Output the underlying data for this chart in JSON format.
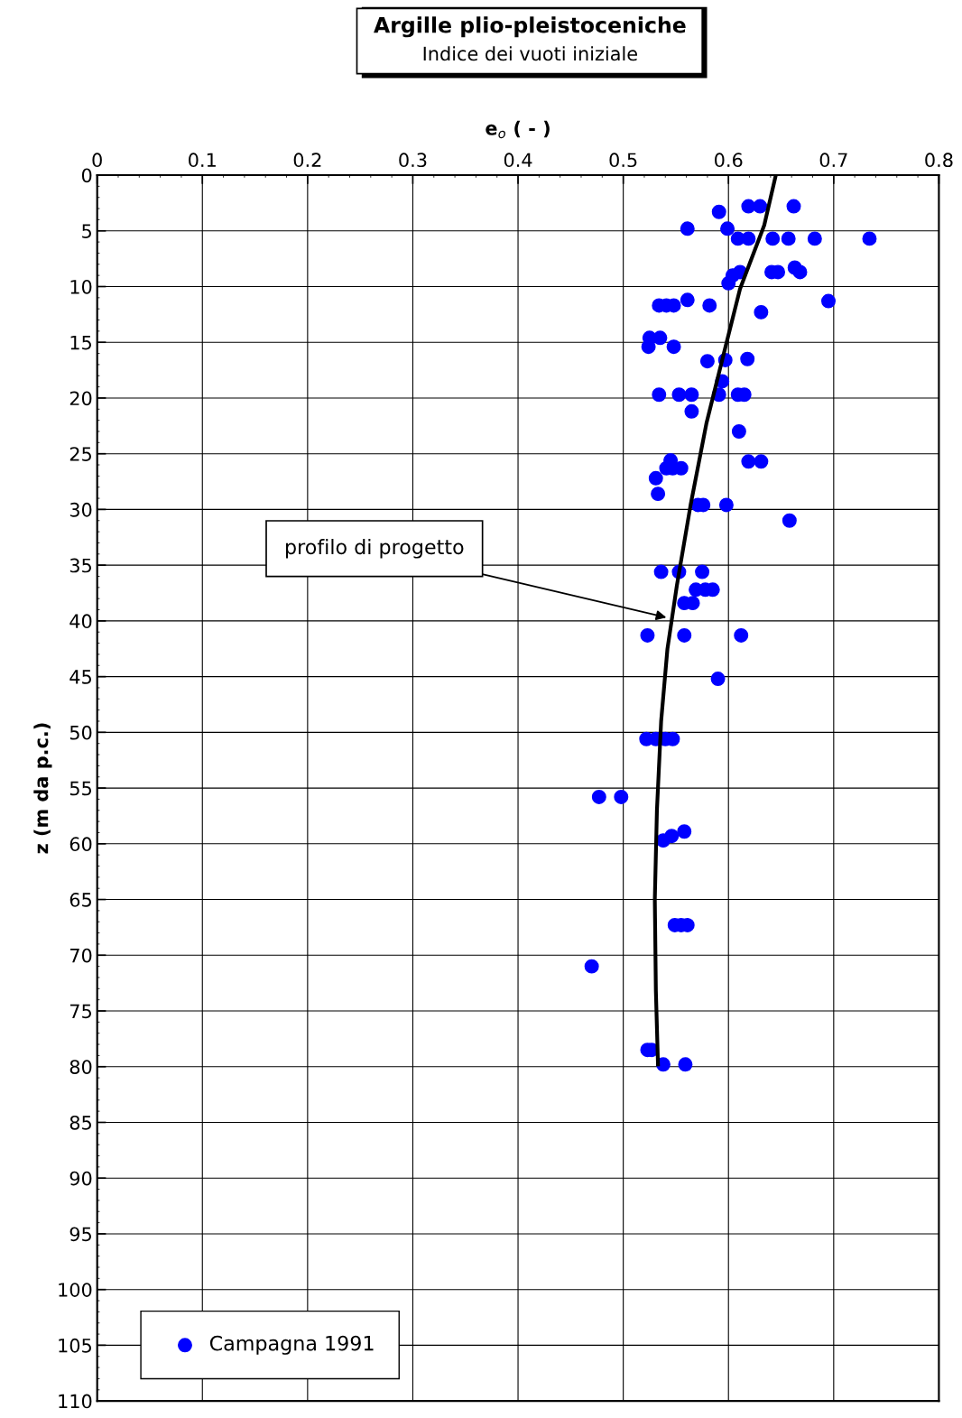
{
  "chart_data": {
    "type": "scatter",
    "title": "Argille plio-pleistoceniche",
    "subtitle": "Indice dei vuoti iniziale",
    "xlabel": "e$_{o}$ ( - )",
    "ylabel": "z (m da p.c.)",
    "xlim": [
      0,
      0.8
    ],
    "xticks": [
      0,
      0.1,
      0.2,
      0.3,
      0.4,
      0.5,
      0.6,
      0.7,
      0.8
    ],
    "ylim": [
      110,
      0
    ],
    "yticks": [
      0,
      5,
      10,
      15,
      20,
      25,
      30,
      35,
      40,
      45,
      50,
      55,
      60,
      65,
      70,
      75,
      80,
      85,
      90,
      95,
      100,
      105,
      110
    ],
    "grid": true,
    "legend": "bottom left",
    "annotations": [
      {
        "text": "profilo di progetto",
        "x": 0.541,
        "y": 39.7
      }
    ],
    "series": [
      {
        "name": "Campagna 1991",
        "color": "#0000ff",
        "marker": "circle",
        "x": [
          0.619,
          0.63,
          0.662,
          0.591,
          0.561,
          0.599,
          0.609,
          0.619,
          0.642,
          0.657,
          0.682,
          0.734,
          0.604,
          0.611,
          0.6,
          0.641,
          0.647,
          0.663,
          0.668,
          0.695,
          0.534,
          0.541,
          0.548,
          0.561,
          0.582,
          0.631,
          0.525,
          0.535,
          0.524,
          0.548,
          0.58,
          0.597,
          0.618,
          0.594,
          0.534,
          0.553,
          0.565,
          0.591,
          0.609,
          0.615,
          0.565,
          0.61,
          0.545,
          0.619,
          0.631,
          0.541,
          0.547,
          0.555,
          0.531,
          0.533,
          0.571,
          0.576,
          0.598,
          0.658,
          0.536,
          0.553,
          0.575,
          0.569,
          0.578,
          0.585,
          0.558,
          0.566,
          0.523,
          0.558,
          0.612,
          0.59,
          0.522,
          0.531,
          0.54,
          0.547,
          0.477,
          0.498,
          0.558,
          0.546,
          0.538,
          0.549,
          0.555,
          0.561,
          0.47,
          0.523,
          0.527,
          0.538,
          0.559
        ],
        "values": [
          2.8,
          2.8,
          2.8,
          3.3,
          4.8,
          4.8,
          5.7,
          5.7,
          5.7,
          5.7,
          5.7,
          5.7,
          9.0,
          8.7,
          9.7,
          8.7,
          8.7,
          8.3,
          8.7,
          11.3,
          11.7,
          11.7,
          11.7,
          11.2,
          11.7,
          12.3,
          14.6,
          14.6,
          15.4,
          15.4,
          16.7,
          16.6,
          16.5,
          18.5,
          19.7,
          19.7,
          19.7,
          19.7,
          19.7,
          19.7,
          21.2,
          23.0,
          25.6,
          25.7,
          25.7,
          26.3,
          26.3,
          26.3,
          27.2,
          28.6,
          29.6,
          29.6,
          29.6,
          31.0,
          35.6,
          35.6,
          35.6,
          37.2,
          37.2,
          37.2,
          38.4,
          38.4,
          41.3,
          41.3,
          41.3,
          45.2,
          50.6,
          50.6,
          50.6,
          50.6,
          55.8,
          55.8,
          58.9,
          59.3,
          59.7,
          67.3,
          67.3,
          67.3,
          71.0,
          78.5,
          78.5,
          79.8,
          79.8
        ]
      },
      {
        "type": "line",
        "color": "#000000",
        "marker": "none",
        "line_style": "solid",
        "x": [
          0.645,
          0.634,
          0.611,
          0.594,
          0.579,
          0.564,
          0.551,
          0.542,
          0.536,
          0.532,
          0.53,
          0.531,
          0.533
        ],
        "values": [
          0,
          4.5,
          10.2,
          16.6,
          22.3,
          29.6,
          36.8,
          42.5,
          49,
          57,
          65,
          73.2,
          79.8
        ]
      }
    ]
  }
}
